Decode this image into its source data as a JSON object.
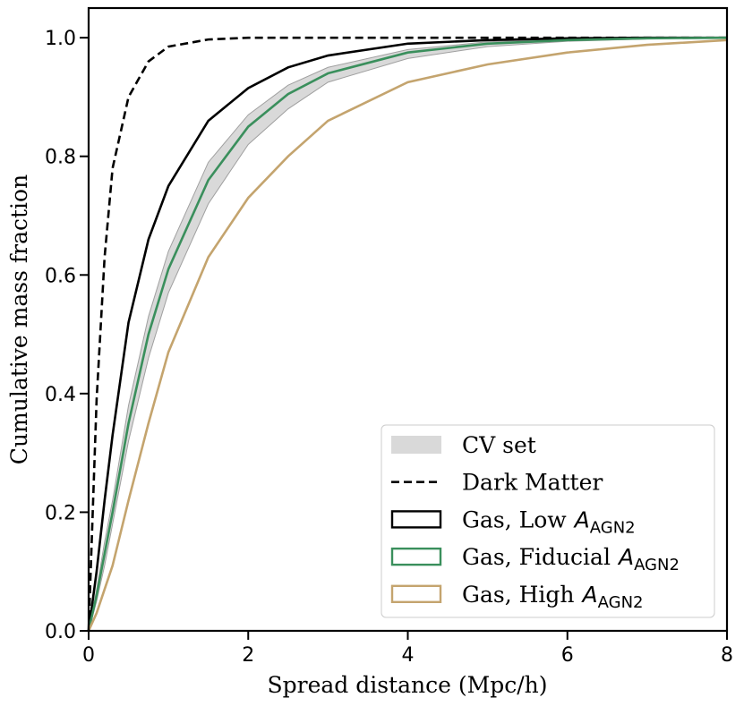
{
  "chart_data": {
    "type": "line",
    "xlabel": "Spread distance (Mpc/h)",
    "ylabel": "Cumulative mass fraction",
    "x": [
      0,
      0.1,
      0.2,
      0.3,
      0.5,
      0.75,
      1,
      1.5,
      2,
      2.5,
      3,
      4,
      5,
      6,
      7,
      8
    ],
    "xlim": [
      0,
      8
    ],
    "ylim": [
      0,
      1.05
    ],
    "xticks": [
      0,
      2,
      4,
      6,
      8
    ],
    "yticks": [
      {
        "value": 0,
        "label": "0.0"
      },
      0.2,
      0.4,
      0.6,
      0.8,
      {
        "value": 1,
        "label": "1.0"
      }
    ],
    "grid": false,
    "legend": "lower right",
    "band": {
      "name": "CV set",
      "color": "#d9d9d9",
      "edge_color": "#a0a0a0",
      "lower": [
        0,
        0.05,
        0.11,
        0.18,
        0.32,
        0.46,
        0.57,
        0.72,
        0.82,
        0.88,
        0.925,
        0.965,
        0.985,
        0.994,
        0.998,
        1
      ],
      "upper": [
        0,
        0.07,
        0.15,
        0.22,
        0.38,
        0.53,
        0.64,
        0.79,
        0.87,
        0.92,
        0.95,
        0.98,
        0.993,
        0.998,
        1,
        1
      ]
    },
    "series": [
      {
        "name": "Dark Matter",
        "color": "#000000",
        "dashed": true,
        "values": [
          0,
          0.39,
          0.63,
          0.78,
          0.9,
          0.96,
          0.985,
          0.997,
          1,
          1,
          1,
          1,
          1,
          1,
          1,
          1
        ]
      },
      {
        "name": {
          "text": "Gas, Low",
          "symbol": "A",
          "subscript": "AGN2"
        },
        "color": "#000000",
        "dashed": false,
        "values": [
          0,
          0.1,
          0.22,
          0.33,
          0.52,
          0.66,
          0.75,
          0.86,
          0.915,
          0.95,
          0.97,
          0.99,
          0.996,
          0.999,
          1,
          1
        ]
      },
      {
        "name": {
          "text": "Gas, Fiducial",
          "symbol": "A",
          "subscript": "AGN2"
        },
        "color": "#3a8f5c",
        "dashed": false,
        "values": [
          0,
          0.06,
          0.13,
          0.2,
          0.35,
          0.5,
          0.61,
          0.76,
          0.85,
          0.905,
          0.94,
          0.975,
          0.99,
          0.996,
          0.999,
          1
        ]
      },
      {
        "name": {
          "text": "Gas, High",
          "symbol": "A",
          "subscript": "AGN2"
        },
        "color": "#c4a46e",
        "dashed": false,
        "values": [
          0,
          0.03,
          0.07,
          0.11,
          0.22,
          0.35,
          0.47,
          0.63,
          0.73,
          0.8,
          0.86,
          0.925,
          0.955,
          0.975,
          0.988,
          0.996
        ]
      }
    ]
  }
}
